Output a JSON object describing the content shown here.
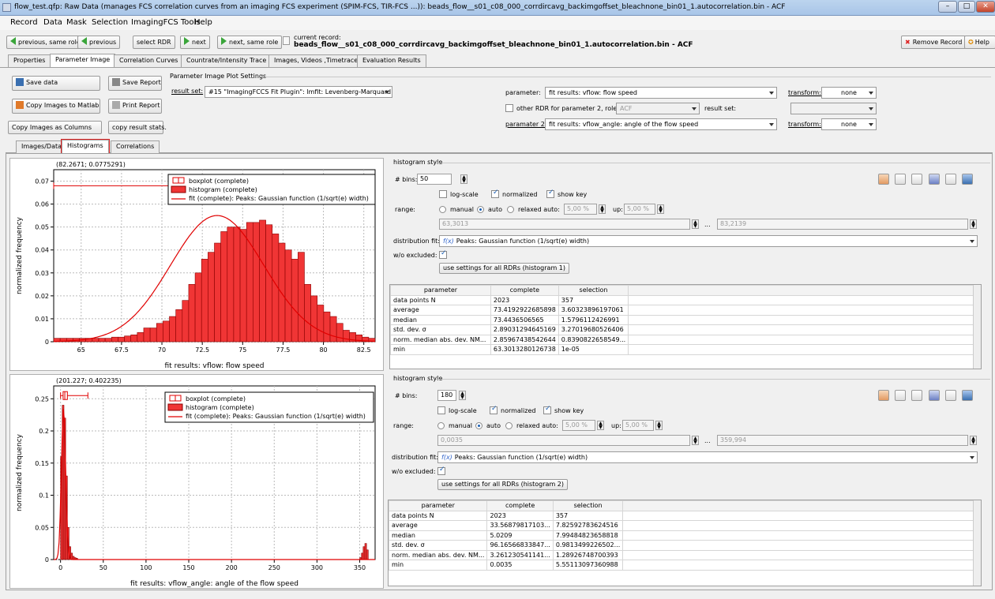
{
  "window": {
    "title": "flow_test.qfp: Raw Data (manages FCS correlation curves from an imaging FCS experiment (SPIM-FCS, TIR-FCS ...)): beads_flow__s01_c08_000_corrdircavg_backimgoffset_bleachnone_bin01_1.autocorrelation.bin - ACF"
  },
  "menu": [
    "Record",
    "Data",
    "Mask",
    "Selection",
    "ImagingFCS Tools",
    "Help"
  ],
  "toolbar": {
    "prev_same_role": "previous, same role",
    "previous": "previous",
    "select_rdr": "select RDR",
    "next": "next",
    "next_same_role": "next, same role",
    "current_record_label": "current record:",
    "current_record": "beads_flow__s01_c08_000_corrdircavg_backimgoffset_bleachnone_bin01_1.autocorrelation.bin - ACF",
    "remove_record": "Remove Record",
    "help": "Help"
  },
  "main_tabs": [
    "Properties",
    "Parameter Image",
    "Correlation Curves",
    "Countrate/Intensity Trace",
    "Images, Videos ,Timetrace",
    "Evaluation Results"
  ],
  "left_buttons": {
    "save_data": "Save data",
    "save_report": "Save Report",
    "copy_images_matlab": "Copy Images to Matlab",
    "print_report": "Print Report",
    "copy_images_columns": "Copy Images as Columns",
    "copy_result_stats": "copy result stats."
  },
  "settings": {
    "group_title": "Parameter Image Plot Settings",
    "result_set_label": "result set:",
    "result_set_value": "#15 \"ImagingFCCS Fit Plugin\": lmfit: Levenberg-Marquard fit",
    "parameter_label": "parameter:",
    "parameter_value": "fit results: vflow: flow speed",
    "transform_label": "transform:",
    "transform_value": "none",
    "other_rdr_label": "other RDR for parameter 2, role:",
    "other_rdr_value": "ACF",
    "result_set2_label": "result set:",
    "param2_label": "paramater 2:",
    "param2_value": "fit results: vflow_angle: angle of the flow speed",
    "transform2_label": "transform:",
    "transform2_value": "none"
  },
  "sub_tabs": [
    "Images/Data",
    "Histograms",
    "Correlations"
  ],
  "hist1": {
    "coord_readout": "(82.2671; 0.0775291)",
    "style_title": "histogram style",
    "bins_label": "# bins:",
    "bins": "50",
    "log_scale": "log-scale",
    "normalized": "normalized",
    "show_key": "show key",
    "range_label": "range:",
    "manual": "manual",
    "auto": "auto",
    "relaxed_auto": "relaxed auto:",
    "relaxed_val": "5,00 %",
    "up_label": "up:",
    "up_val": "5,00 %",
    "range_min": "63,3013",
    "range_dots": "...",
    "range_max": "83,2139",
    "dist_fit_label": "distribution fit:",
    "dist_fit_value": "Peaks: Gaussian function (1/sqrt(e) width)",
    "wo_excluded": "w/o excluded:",
    "use_settings": "use settings for all RDRs (histogram 1)",
    "table_headers": [
      "parameter",
      "complete",
      "selection"
    ],
    "table_rows": [
      [
        "data points N",
        "2023",
        "357"
      ],
      [
        "average",
        "73.4192922685898",
        "3.60323896197061"
      ],
      [
        "median",
        "73.4436506565",
        "1.5796112426991"
      ],
      [
        "std. dev. σ",
        "2.89031294645169",
        "3.27019680526406"
      ],
      [
        "norm. median abs. dev. NM...",
        "2.85967438542644",
        "0.8390822658549..."
      ],
      [
        "min",
        "63.3013280126738",
        "1e-05"
      ]
    ]
  },
  "hist2": {
    "coord_readout": "(201.227; 0.402235)",
    "style_title": "histogram style",
    "bins_label": "# bins:",
    "bins": "180",
    "log_scale": "log-scale",
    "normalized": "normalized",
    "show_key": "show key",
    "range_label": "range:",
    "manual": "manual",
    "auto": "auto",
    "relaxed_auto": "relaxed auto:",
    "relaxed_val": "5,00 %",
    "up_label": "up:",
    "up_val": "5,00 %",
    "range_min": "0,0035",
    "range_dots": "...",
    "range_max": "359,994",
    "dist_fit_label": "distribution fit:",
    "dist_fit_value": "Peaks: Gaussian function (1/sqrt(e) width)",
    "wo_excluded": "w/o excluded:",
    "use_settings": "use settings for all RDRs (histogram 2)",
    "table_headers": [
      "parameter",
      "complete",
      "selection"
    ],
    "table_rows": [
      [
        "data points N",
        "2023",
        "357"
      ],
      [
        "average",
        "33.56879817103...",
        "7.82592783624516"
      ],
      [
        "median",
        "5.0209",
        "7.99484823658818"
      ],
      [
        "std. dev. σ",
        "96.16566833847...",
        "0.9813499226502..."
      ],
      [
        "norm. median abs. dev. NM...",
        "3.261230541141...",
        "1.28926748700393"
      ],
      [
        "min",
        "0.0035",
        "5.55113097360988"
      ]
    ]
  },
  "chart_data": [
    {
      "type": "bar",
      "xlabel": "fit results: vflow: flow speed",
      "ylabel": "normalized frequency",
      "xlim": [
        63.3,
        83.2
      ],
      "ylim": [
        0,
        0.075
      ],
      "xticks": [
        "65",
        "67.5",
        "70",
        "72.5",
        "75",
        "77.5",
        "80",
        "82.5"
      ],
      "xtick_values": [
        65,
        67.5,
        70,
        72.5,
        75,
        77.5,
        80,
        82.5
      ],
      "yticks": [
        "0",
        "0.01",
        "0.02",
        "0.03",
        "0.04",
        "0.05",
        "0.06",
        "0.07"
      ],
      "ytick_values": [
        0,
        0.01,
        0.02,
        0.03,
        0.04,
        0.05,
        0.06,
        0.07
      ],
      "legend": [
        "boxplot (complete)",
        "histogram (complete)",
        "fit (complete): Peaks: Gaussian function (1/sqrt(e) width)"
      ],
      "legend_position": "top-left",
      "bin_start": 63.3,
      "bin_width": 0.398,
      "values": [
        0.0015,
        0.0015,
        0.0015,
        0.0015,
        0.0015,
        0.0015,
        0.0015,
        0.0015,
        0.0015,
        0.002,
        0.002,
        0.0025,
        0.003,
        0.004,
        0.006,
        0.006,
        0.008,
        0.009,
        0.011,
        0.014,
        0.018,
        0.025,
        0.03,
        0.036,
        0.039,
        0.043,
        0.048,
        0.05,
        0.05,
        0.049,
        0.052,
        0.052,
        0.053,
        0.051,
        0.047,
        0.043,
        0.04,
        0.036,
        0.039,
        0.025,
        0.02,
        0.016,
        0.013,
        0.011,
        0.008,
        0.005,
        0.004,
        0.003,
        0.002,
        0.0015
      ],
      "fit": {
        "mean": 73.42,
        "sigma": 2.89,
        "amplitude": 0.055
      },
      "boxplot": {
        "y": 0.068,
        "min": 63.3,
        "q1": 71.5,
        "median": 73.44,
        "q3": 75.4,
        "max": 83.2
      }
    },
    {
      "type": "bar",
      "xlabel": "fit results: vflow_angle: angle of the flow speed",
      "ylabel": "normalized frequency",
      "xlim": [
        -8,
        368
      ],
      "ylim": [
        0,
        0.27
      ],
      "xticks": [
        "0",
        "50",
        "100",
        "150",
        "200",
        "250",
        "300",
        "350"
      ],
      "xtick_values": [
        0,
        50,
        100,
        150,
        200,
        250,
        300,
        350
      ],
      "yticks": [
        "0",
        "0.05",
        "0.1",
        "0.15",
        "0.2",
        "0.25"
      ],
      "ytick_values": [
        0,
        0.05,
        0.1,
        0.15,
        0.2,
        0.25
      ],
      "legend": [
        "boxplot (complete)",
        "histogram (complete)",
        "fit (complete): Peaks: Gaussian function (1/sqrt(e) width)"
      ],
      "legend_position": "top-left",
      "bin_start": 0,
      "bin_width": 2,
      "values": [
        0.16,
        0.24,
        0.22,
        0.13,
        0.05,
        0.02,
        0.01,
        0.005,
        0.003,
        0.002
      ],
      "tail_values": [
        0.003,
        0.01,
        0.02,
        0.025,
        0.015
      ],
      "tail_start": 350,
      "fit": {
        "mean": 3.5,
        "sigma": 2.5,
        "amplitude": 0.235
      },
      "boxplot": {
        "y": 0.255,
        "min": 0,
        "q1": 3,
        "median": 5.0,
        "q3": 8,
        "max": 32
      }
    }
  ]
}
